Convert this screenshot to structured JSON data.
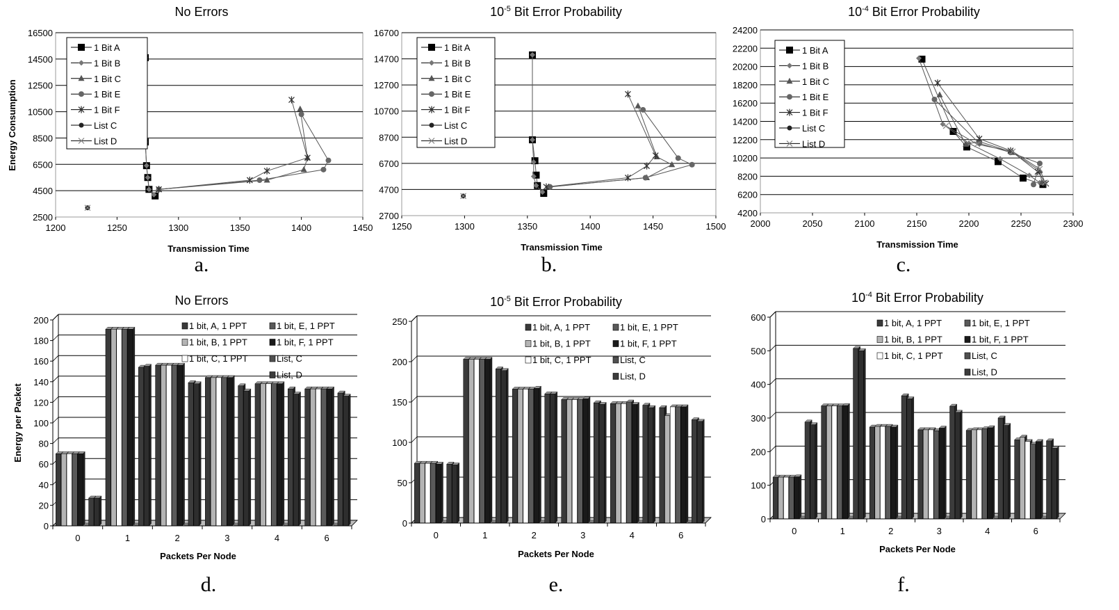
{
  "chart_data": [
    {
      "id": "a",
      "type": "scatter",
      "panel_label": "a.",
      "title": "No Errors",
      "title_sup": "",
      "title_rest": "",
      "xlabel": "Transmission Time",
      "ylabel": "Energy Consumption",
      "xlim": [
        1200,
        1450
      ],
      "xticks": [
        1200,
        1250,
        1300,
        1350,
        1400,
        1450
      ],
      "ylim": [
        2500,
        16500
      ],
      "yticks": [
        2500,
        4500,
        6500,
        8500,
        10500,
        12500,
        14500,
        16500
      ],
      "grid": "horizontal",
      "legend_position": "top-left",
      "series": [
        {
          "name": "1 Bit A",
          "marker": "square",
          "points": [
            [
              1273,
              14600
            ],
            [
              1273,
              8200
            ],
            [
              1274,
              6400
            ],
            [
              1275,
              5500
            ],
            [
              1276,
              4600
            ],
            [
              1281,
              4100
            ]
          ]
        },
        {
          "name": "1 Bit B",
          "marker": "diamond",
          "points": [
            [
              1273,
              14600
            ],
            [
              1273,
              8200
            ],
            [
              1274,
              6400
            ],
            [
              1275,
              5500
            ],
            [
              1276,
              4600
            ],
            [
              1280,
              4200
            ]
          ]
        },
        {
          "name": "1 Bit C",
          "marker": "triangle",
          "points": [
            [
              1399,
              10700
            ],
            [
              1405,
              7000
            ],
            [
              1402,
              6100
            ],
            [
              1372,
              5300
            ],
            [
              1284,
              4600
            ]
          ]
        },
        {
          "name": "1 Bit E",
          "marker": "circle",
          "points": [
            [
              1400,
              10300
            ],
            [
              1422,
              6800
            ],
            [
              1418,
              6100
            ],
            [
              1366,
              5300
            ],
            [
              1284,
              4600
            ]
          ]
        },
        {
          "name": "1 Bit F",
          "marker": "star",
          "points": [
            [
              1392,
              11400
            ],
            [
              1405,
              7000
            ],
            [
              1372,
              6000
            ],
            [
              1358,
              5300
            ],
            [
              1284,
              4600
            ]
          ]
        },
        {
          "name": "List C",
          "marker": "dot",
          "points": [
            [
              1226,
              3200
            ]
          ]
        },
        {
          "name": "List D",
          "marker": "x",
          "points": [
            [
              1226,
              3200
            ]
          ]
        }
      ]
    },
    {
      "id": "b",
      "type": "scatter",
      "panel_label": "b.",
      "title": "10",
      "title_sup": "-5",
      "title_rest": " Bit Error Probability",
      "xlabel": "Transmission Time",
      "ylabel": "",
      "xlim": [
        1250,
        1500
      ],
      "xticks": [
        1250,
        1300,
        1350,
        1400,
        1450,
        1500
      ],
      "ylim": [
        2700,
        16700
      ],
      "yticks": [
        2700,
        4700,
        6700,
        8700,
        10700,
        12700,
        14700,
        16700
      ],
      "grid": "horizontal",
      "legend_position": "top-left",
      "series": [
        {
          "name": "1 Bit A",
          "marker": "square",
          "points": [
            [
              1354,
              15000
            ],
            [
              1354,
              8500
            ],
            [
              1356,
              6900
            ],
            [
              1357,
              5800
            ],
            [
              1358,
              5000
            ],
            [
              1363,
              4400
            ]
          ]
        },
        {
          "name": "1 Bit B",
          "marker": "diamond",
          "points": [
            [
              1354,
              15000
            ],
            [
              1354,
              8500
            ],
            [
              1355,
              6800
            ],
            [
              1355,
              5700
            ],
            [
              1357,
              5000
            ],
            [
              1362,
              4500
            ]
          ]
        },
        {
          "name": "1 Bit C",
          "marker": "triangle",
          "points": [
            [
              1438,
              11100
            ],
            [
              1453,
              7200
            ],
            [
              1465,
              6600
            ],
            [
              1445,
              5600
            ],
            [
              1367,
              4900
            ]
          ]
        },
        {
          "name": "1 Bit E",
          "marker": "circle",
          "points": [
            [
              1442,
              10800
            ],
            [
              1470,
              7100
            ],
            [
              1481,
              6600
            ],
            [
              1444,
              5600
            ],
            [
              1368,
              4900
            ]
          ]
        },
        {
          "name": "1 Bit F",
          "marker": "star",
          "points": [
            [
              1430,
              12000
            ],
            [
              1452,
              7300
            ],
            [
              1445,
              6500
            ],
            [
              1430,
              5600
            ],
            [
              1365,
              4900
            ]
          ]
        },
        {
          "name": "List C",
          "marker": "dot",
          "points": [
            [
              1299,
              4200
            ]
          ]
        },
        {
          "name": "List D",
          "marker": "x",
          "points": [
            [
              1299,
              4200
            ]
          ]
        }
      ]
    },
    {
      "id": "c",
      "type": "scatter",
      "panel_label": "c.",
      "title": "10",
      "title_sup": "-4",
      "title_rest": " Bit Error Probability",
      "xlabel": "Transmission Time",
      "ylabel": "",
      "xlim": [
        2000,
        2300
      ],
      "xticks": [
        2000,
        2050,
        2100,
        2150,
        2200,
        2250,
        2300
      ],
      "ylim": [
        4200,
        24200
      ],
      "yticks": [
        4200,
        6200,
        8200,
        10200,
        12200,
        14200,
        16200,
        18200,
        20200,
        22200,
        24200
      ],
      "grid": "horizontal",
      "legend_position": "top-left",
      "series": [
        {
          "name": "1 Bit A",
          "marker": "square",
          "points": [
            [
              2155,
              21000
            ],
            [
              2185,
              13100
            ],
            [
              2198,
              11400
            ],
            [
              2228,
              9800
            ],
            [
              2252,
              8000
            ],
            [
              2271,
              7300
            ]
          ]
        },
        {
          "name": "1 Bit B",
          "marker": "diamond",
          "points": [
            [
              2152,
              21100
            ],
            [
              2175,
              13900
            ],
            [
              2200,
              11800
            ],
            [
              2230,
              10100
            ],
            [
              2258,
              8300
            ],
            [
              2268,
              7500
            ]
          ]
        },
        {
          "name": "1 Bit C",
          "marker": "triangle",
          "points": [
            [
              2172,
              17100
            ],
            [
              2197,
              11700
            ],
            [
              2210,
              12000
            ],
            [
              2242,
              10800
            ],
            [
              2268,
              8800
            ],
            [
              2270,
              7500
            ]
          ]
        },
        {
          "name": "1 Bit E",
          "marker": "circle",
          "points": [
            [
              2167,
              16600
            ],
            [
              2210,
              11800
            ],
            [
              2240,
              10800
            ],
            [
              2268,
              9600
            ],
            [
              2262,
              7300
            ]
          ]
        },
        {
          "name": "1 Bit F",
          "marker": "star",
          "points": [
            [
              2170,
              18400
            ],
            [
              2210,
              12300
            ],
            [
              2240,
              11000
            ],
            [
              2266,
              8700
            ],
            [
              2274,
              7400
            ]
          ]
        },
        {
          "name": "List C",
          "marker": "dot",
          "points": []
        },
        {
          "name": "List D",
          "marker": "x",
          "points": [
            [
              2178,
              13700
            ],
            [
              2208,
              11700
            ],
            [
              2242,
              10900
            ],
            [
              2268,
              9000
            ],
            [
              2273,
              7500
            ]
          ]
        }
      ]
    },
    {
      "id": "d",
      "type": "bar",
      "panel_label": "d.",
      "title": "No Errors",
      "title_sup": "",
      "title_rest": "",
      "xlabel": "Packets Per Node",
      "ylabel": "Energy per Packet",
      "ylim": [
        0,
        200
      ],
      "yticks": [
        0,
        20,
        40,
        60,
        80,
        100,
        120,
        140,
        160,
        180,
        200
      ],
      "grid": "horizontal",
      "legend_position": "top-right",
      "categories": [
        "0",
        "1",
        "2",
        "3",
        "4",
        "6"
      ],
      "series": [
        {
          "name": "1 bit, A,  1 PPT",
          "color": "#3a3a3a",
          "values": [
            70,
            191,
            156,
            144,
            138,
            133
          ]
        },
        {
          "name": "1 bit, B,  1 PPT",
          "color": "#b4b4b4",
          "values": [
            70,
            191,
            156,
            144,
            138,
            133
          ]
        },
        {
          "name": "1 bit, C,  1 PPT",
          "color": "#ffffff",
          "values": [
            70,
            191,
            156,
            144,
            138,
            133
          ]
        },
        {
          "name": "1 bit, E,  1 PPT",
          "color": "#5a5a5a",
          "values": [
            70,
            191,
            156,
            144,
            138,
            133
          ]
        },
        {
          "name": "1 bit, F,  1 PPT",
          "color": "#1a1a1a",
          "values": [
            70,
            191,
            156,
            144,
            138,
            133
          ]
        },
        {
          "name": "List, C",
          "color": "#505050",
          "values": [
            0,
            0,
            0,
            0,
            0,
            0
          ]
        },
        {
          "name": "List, D",
          "color": "#3c3c3c",
          "values": [
            27,
            154,
            139,
            136,
            133,
            129
          ]
        },
        {
          "name": "",
          "color": "#2e2e2e",
          "values": [
            27,
            155,
            138,
            131,
            128,
            126
          ]
        }
      ]
    },
    {
      "id": "e",
      "type": "bar",
      "panel_label": "e.",
      "title": "10",
      "title_sup": "-5",
      "title_rest": " Bit Error Probability",
      "xlabel": "Packets Per Node",
      "ylabel": "",
      "ylim": [
        0,
        250
      ],
      "yticks": [
        0,
        50,
        100,
        150,
        200,
        250
      ],
      "grid": "horizontal",
      "legend_position": "top-right",
      "categories": [
        "0",
        "1",
        "2",
        "3",
        "4",
        "6"
      ],
      "series": [
        {
          "name": "1 bit, A,  1 PPT",
          "color": "#3a3a3a",
          "values": [
            74,
            203,
            166,
            153,
            148,
            143
          ]
        },
        {
          "name": "1 bit, B,  1 PPT",
          "color": "#b4b4b4",
          "values": [
            74,
            203,
            166,
            153,
            148,
            133
          ]
        },
        {
          "name": "1 bit, C,  1 PPT",
          "color": "#ffffff",
          "values": [
            74,
            203,
            166,
            153,
            148,
            144
          ]
        },
        {
          "name": "1 bit, E,  1 PPT",
          "color": "#5a5a5a",
          "values": [
            74,
            203,
            166,
            153,
            150,
            144
          ]
        },
        {
          "name": "1 bit, F,  1 PPT",
          "color": "#1a1a1a",
          "values": [
            73,
            203,
            167,
            154,
            147,
            144
          ]
        },
        {
          "name": "List, C",
          "color": "#505050",
          "values": [
            0,
            0,
            0,
            0,
            0,
            0
          ]
        },
        {
          "name": "List, D",
          "color": "#3c3c3c",
          "values": [
            73,
            191,
            160,
            149,
            146,
            128
          ]
        },
        {
          "name": "",
          "color": "#2e2e2e",
          "values": [
            72,
            189,
            160,
            147,
            143,
            126
          ]
        }
      ]
    },
    {
      "id": "f",
      "type": "bar",
      "panel_label": "f.",
      "title": "10",
      "title_sup": "-4",
      "title_rest": " Bit Error Probability",
      "xlabel": "Packets Per Node",
      "ylabel": "",
      "ylim": [
        0,
        600
      ],
      "yticks": [
        0,
        100,
        200,
        300,
        400,
        500,
        600
      ],
      "grid": "horizontal",
      "legend_position": "top-right",
      "categories": [
        "0",
        "1",
        "2",
        "3",
        "4",
        "6"
      ],
      "series": [
        {
          "name": "1 bit, A,  1 PPT",
          "color": "#3a3a3a",
          "values": [
            124,
            336,
            273,
            265,
            263,
            235
          ]
        },
        {
          "name": "1 bit, B,  1 PPT",
          "color": "#b4b4b4",
          "values": [
            124,
            336,
            275,
            265,
            265,
            243
          ]
        },
        {
          "name": "1 bit, C,  1 PPT",
          "color": "#ffffff",
          "values": [
            124,
            336,
            275,
            265,
            265,
            230
          ]
        },
        {
          "name": "1 bit, E,  1 PPT",
          "color": "#5a5a5a",
          "values": [
            124,
            336,
            275,
            262,
            268,
            222
          ]
        },
        {
          "name": "1 bit, F,  1 PPT",
          "color": "#1a1a1a",
          "values": [
            125,
            337,
            273,
            270,
            271,
            230
          ]
        },
        {
          "name": "List, C",
          "color": "#505050",
          "values": [
            0,
            0,
            0,
            0,
            0,
            0
          ]
        },
        {
          "name": "List, D",
          "color": "#3c3c3c",
          "values": [
            288,
            507,
            366,
            335,
            300,
            232
          ]
        },
        {
          "name": "",
          "color": "#2e2e2e",
          "values": [
            280,
            500,
            357,
            317,
            278,
            210
          ]
        }
      ]
    }
  ]
}
